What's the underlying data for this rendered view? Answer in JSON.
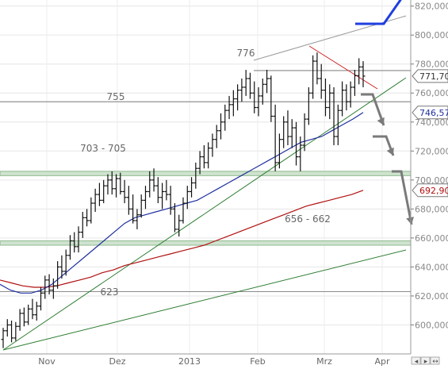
{
  "chart_data": {
    "type": "candlestick",
    "x_ticks": [
      "Nov",
      "Dez",
      "2013",
      "Feb",
      "Mrz",
      "Apr"
    ],
    "y_ticks": [
      "600,000",
      "620,000",
      "640,000",
      "660,000",
      "680,000",
      "700,000",
      "720,000",
      "740,000",
      "760,000",
      "780,000",
      "800,000",
      "820,000"
    ],
    "ylim": [
      580,
      822
    ],
    "grid": true,
    "price_labels": [
      {
        "text": "771,70",
        "value": 771.7,
        "color": "#333333"
      },
      {
        "text": "746,57",
        "value": 746.57,
        "color": "#1f2f9f"
      },
      {
        "text": "692,90",
        "value": 692.9,
        "color": "#b01010"
      }
    ],
    "horizontal_levels": [
      {
        "label": "776",
        "value": 775.5
      },
      {
        "label": "755",
        "value": 754
      },
      {
        "label": "703 - 705",
        "range": [
          703,
          706
        ]
      },
      {
        "label": "656 - 662",
        "range": [
          655,
          658
        ]
      },
      {
        "label": "623",
        "value": 623
      }
    ],
    "series": [
      {
        "kind": "ohlc",
        "values": [
          [
            590,
            598,
            584,
            596
          ],
          [
            596,
            604,
            592,
            600
          ],
          [
            600,
            603,
            588,
            591
          ],
          [
            591,
            602,
            589,
            599
          ],
          [
            599,
            611,
            596,
            608
          ],
          [
            608,
            612,
            599,
            602
          ],
          [
            602,
            614,
            600,
            611
          ],
          [
            611,
            618,
            604,
            607
          ],
          [
            607,
            616,
            603,
            613
          ],
          [
            613,
            626,
            610,
            622
          ],
          [
            622,
            634,
            618,
            631
          ],
          [
            631,
            635,
            621,
            624
          ],
          [
            624,
            632,
            618,
            627
          ],
          [
            627,
            644,
            625,
            640
          ],
          [
            640,
            648,
            632,
            637
          ],
          [
            637,
            652,
            634,
            648
          ],
          [
            648,
            662,
            645,
            658
          ],
          [
            658,
            664,
            650,
            654
          ],
          [
            654,
            668,
            650,
            664
          ],
          [
            664,
            678,
            660,
            674
          ],
          [
            674,
            680,
            668,
            672
          ],
          [
            672,
            688,
            670,
            684
          ],
          [
            684,
            694,
            678,
            690
          ],
          [
            690,
            698,
            682,
            686
          ],
          [
            686,
            700,
            684,
            696
          ],
          [
            696,
            704,
            690,
            700
          ],
          [
            700,
            706,
            690,
            694
          ],
          [
            694,
            704,
            688,
            701
          ],
          [
            701,
            705,
            690,
            692
          ],
          [
            692,
            700,
            684,
            688
          ],
          [
            688,
            696,
            676,
            680
          ],
          [
            680,
            690,
            670,
            672
          ],
          [
            672,
            680,
            666,
            676
          ],
          [
            676,
            690,
            674,
            686
          ],
          [
            686,
            696,
            680,
            692
          ],
          [
            692,
            706,
            688,
            700
          ],
          [
            700,
            708,
            692,
            696
          ],
          [
            696,
            702,
            684,
            688
          ],
          [
            688,
            698,
            680,
            692
          ],
          [
            692,
            700,
            686,
            690
          ],
          [
            690,
            696,
            676,
            680
          ],
          [
            680,
            684,
            664,
            666
          ],
          [
            666,
            676,
            661,
            672
          ],
          [
            672,
            688,
            670,
            684
          ],
          [
            684,
            696,
            680,
            692
          ],
          [
            692,
            702,
            688,
            698
          ],
          [
            698,
            712,
            694,
            708
          ],
          [
            708,
            720,
            704,
            716
          ],
          [
            716,
            724,
            708,
            712
          ],
          [
            712,
            726,
            708,
            722
          ],
          [
            722,
            732,
            716,
            728
          ],
          [
            728,
            738,
            722,
            734
          ],
          [
            734,
            746,
            728,
            740
          ],
          [
            740,
            752,
            734,
            748
          ],
          [
            748,
            758,
            742,
            752
          ],
          [
            752,
            762,
            744,
            756
          ],
          [
            756,
            766,
            748,
            762
          ],
          [
            762,
            770,
            754,
            764
          ],
          [
            764,
            776,
            758,
            770
          ],
          [
            770,
            774,
            756,
            760
          ],
          [
            760,
            768,
            746,
            750
          ],
          [
            750,
            764,
            744,
            758
          ],
          [
            758,
            770,
            752,
            766
          ],
          [
            766,
            776,
            760,
            770
          ],
          [
            770,
            772,
            740,
            744
          ],
          [
            744,
            752,
            706,
            712
          ],
          [
            712,
            732,
            708,
            728
          ],
          [
            728,
            744,
            722,
            740
          ],
          [
            740,
            748,
            724,
            730
          ],
          [
            730,
            742,
            722,
            736
          ],
          [
            736,
            740,
            710,
            716
          ],
          [
            716,
            730,
            706,
            724
          ],
          [
            724,
            746,
            720,
            742
          ],
          [
            742,
            764,
            738,
            760
          ],
          [
            760,
            786,
            756,
            782
          ],
          [
            782,
            788,
            766,
            770
          ],
          [
            770,
            780,
            756,
            762
          ],
          [
            762,
            770,
            744,
            750
          ],
          [
            750,
            766,
            742,
            760
          ],
          [
            760,
            764,
            724,
            730
          ],
          [
            730,
            752,
            724,
            748
          ],
          [
            748,
            768,
            744,
            762
          ],
          [
            762,
            766,
            748,
            754
          ],
          [
            754,
            768,
            750,
            764
          ],
          [
            764,
            776,
            758,
            772
          ],
          [
            772,
            784,
            766,
            778
          ],
          [
            778,
            782,
            764,
            771.7
          ]
        ]
      },
      {
        "kind": "moving_average_short",
        "color": "#1f2f9f",
        "values": [
          628,
          624,
          622,
          622,
          624,
          628,
          634,
          640,
          646,
          652,
          658,
          664,
          670,
          674,
          676,
          678,
          680,
          682,
          684,
          686,
          690,
          694,
          698,
          702,
          706,
          710,
          714,
          718,
          722,
          726,
          728,
          730,
          734,
          738,
          742,
          746.57
        ]
      },
      {
        "kind": "moving_average_long",
        "color": "#b01010",
        "values": [
          631,
          629,
          627,
          626,
          626,
          627,
          629,
          631,
          633,
          636,
          638,
          641,
          643,
          645,
          647,
          649,
          651,
          653,
          655,
          658,
          661,
          664,
          667,
          670,
          673,
          676,
          679,
          682,
          684,
          686,
          688,
          690,
          692.9
        ]
      }
    ]
  }
}
